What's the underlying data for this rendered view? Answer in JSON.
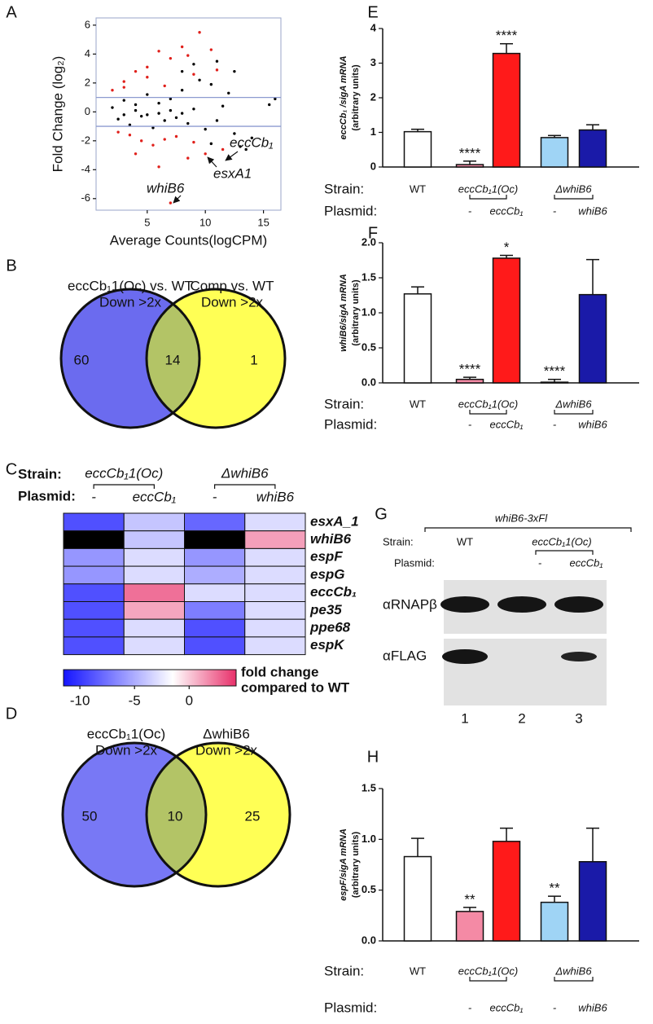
{
  "chart_data": [
    {
      "type": "scatter",
      "panel": "A",
      "x_label": "Average Counts(logCPM)",
      "y_label": "Fold Change (log₂)",
      "xlim": [
        0.6,
        16.5
      ],
      "ylim": [
        -6.8,
        6.5
      ],
      "xticks": [
        5,
        10,
        15
      ],
      "yticks": [
        -6,
        -4,
        -2,
        0,
        2,
        4,
        6
      ],
      "hlines": [
        1,
        -1
      ],
      "hline_color": "#8d9bd0",
      "series": [
        {
          "color": "#000000",
          "x": [
            2,
            2.5,
            3,
            3.5,
            4,
            4.5,
            5,
            5.5,
            6,
            6.5,
            7,
            7.5,
            8,
            8.5,
            9,
            9.5,
            10,
            10.5,
            11,
            11.5,
            12,
            12.5,
            13,
            13.5,
            14,
            15.5,
            16,
            11,
            9,
            12.5,
            8,
            10.5,
            3,
            6,
            7,
            8,
            4,
            5
          ],
          "values": [
            0.3,
            -0.5,
            0.8,
            -0.9,
            0.5,
            -0.3,
            1.2,
            -1.1,
            0.6,
            -0.6,
            0.9,
            -0.4,
            1.5,
            -0.8,
            0.2,
            2.2,
            -1.2,
            1.9,
            -0.6,
            0.4,
            1.3,
            -1.5,
            -2.4,
            -2.6,
            -1.8,
            0.5,
            0.9,
            3.5,
            3.3,
            2.8,
            2.8,
            -2.2,
            -0.2,
            -0.1,
            0.1,
            -0.1,
            0.1,
            -0.2
          ]
        },
        {
          "color": "#e0201b",
          "x": [
            2,
            3,
            3.5,
            4,
            4.5,
            5,
            5.5,
            6,
            6.5,
            7,
            7.5,
            8,
            8.5,
            9,
            9.5,
            10,
            10.5,
            11.5,
            7,
            6,
            4,
            5,
            3,
            8.5,
            9,
            6.5,
            2.5,
            11
          ],
          "values": [
            1.5,
            2.1,
            -1.6,
            2.8,
            -2,
            3.1,
            -2.3,
            4.2,
            1.8,
            3.7,
            -1.7,
            4.5,
            -3.2,
            2.6,
            5.5,
            -2.9,
            4.3,
            -2.6,
            -6.3,
            -3.8,
            -2.9,
            2.4,
            1.7,
            3.9,
            -2.1,
            -1.9,
            -1.4,
            2.9
          ]
        }
      ],
      "annotations": [
        "eccCb₁",
        "esxA1",
        "whiB6"
      ]
    },
    {
      "type": "venn",
      "panel": "B",
      "sets": [
        {
          "label": [
            "eccCb₁1(Oc) vs. WT",
            "Down >2x"
          ],
          "color": "#6b6bef",
          "count": 60
        },
        {
          "label": [
            "Comp vs. WT",
            "Down >2x"
          ],
          "color": "#ffff55",
          "count": 1
        }
      ],
      "overlap": {
        "color": "#b3c466",
        "count": 14
      }
    },
    {
      "type": "heatmap",
      "panel": "C",
      "header_labels": [
        "Strain:",
        "Plasmid:"
      ],
      "strains": [
        "eccCb₁1(Oc)",
        "ΔwhiB6"
      ],
      "plasmids": [
        "-",
        "eccCb₁",
        "-",
        "whiB6"
      ],
      "rows": [
        "esxA_1",
        "whiB6",
        "espF",
        "espG",
        "eccCb₁",
        "pe35",
        "ppe68",
        "espK"
      ],
      "values": [
        [
          -9,
          -4,
          -8,
          -3
        ],
        [
          null,
          -4,
          null,
          1.2
        ],
        [
          -6,
          -3,
          -6,
          -3
        ],
        [
          -6,
          -3,
          -5,
          -3
        ],
        [
          -9,
          2.5,
          -3,
          -3
        ],
        [
          -9,
          1,
          -7,
          -3
        ],
        [
          -9,
          -3,
          -9,
          -3
        ],
        [
          -9,
          -3,
          -9,
          -3
        ]
      ],
      "missing_color": "#000000",
      "colorscale": [
        [
          -11.5,
          "#1515ff"
        ],
        [
          -1.5,
          "#ffffff"
        ],
        [
          4.3,
          "#e8306a"
        ]
      ],
      "clim": [
        -11.5,
        4.3
      ],
      "cticks": [
        -10,
        -5,
        0
      ],
      "colorbar_label": [
        "fold change",
        "compared to WT"
      ]
    },
    {
      "type": "venn",
      "panel": "D",
      "sets": [
        {
          "label": [
            "eccCb₁1(Oc)",
            "Down >2x"
          ],
          "color": "#7878f5",
          "count": 50
        },
        {
          "label": [
            "ΔwhiB6",
            "Down >2x"
          ],
          "color": "#ffff55",
          "count": 25
        }
      ],
      "overlap": {
        "color": "#b3c466",
        "count": 10
      }
    },
    {
      "type": "bar",
      "panel": "E",
      "y_label": [
        "eccCb₁ /sigA mRNA",
        "(arbitrary units)"
      ],
      "ylim": [
        0,
        4
      ],
      "yticks": [
        0,
        1,
        2,
        3,
        4
      ],
      "values": [
        1.02,
        0.07,
        3.28,
        0.85,
        1.07
      ],
      "errors": [
        0.07,
        0.1,
        0.28,
        0.06,
        0.15
      ],
      "colors": [
        "#ffffff",
        "#f48aa5",
        "#ff1a1a",
        "#9fd4f5",
        "#1a1aa8"
      ],
      "significance": [
        null,
        "****",
        "****",
        null,
        null
      ],
      "row_labels": [
        "Strain:",
        "Plasmid:"
      ],
      "strains": [
        "WT",
        "eccCb₁1(Oc)",
        "ΔwhiB6"
      ],
      "plasmids": [
        null,
        "-",
        "eccCb₁",
        "-",
        "whiB6"
      ]
    },
    {
      "type": "bar",
      "panel": "F",
      "y_label": [
        "whiB6/sigA mRNA",
        "(arbitrary units)"
      ],
      "ylim": [
        0,
        2
      ],
      "yticks": [
        {
          "value": 0,
          "label": "0.0"
        },
        0.5,
        {
          "value": 1,
          "label": "1.0"
        },
        1.5,
        {
          "value": 2,
          "label": "2.0"
        }
      ],
      "values": [
        1.27,
        0.05,
        1.78,
        0.01,
        1.26
      ],
      "errors": [
        0.1,
        0.03,
        0.04,
        0.04,
        0.5
      ],
      "colors": [
        "#ffffff",
        "#f48aa5",
        "#ff1a1a",
        "#9fd4f5",
        "#1a1aa8"
      ],
      "significance": [
        null,
        "****",
        "*",
        "****",
        null
      ],
      "row_labels": [
        "Strain:",
        "Plasmid:"
      ],
      "strains": [
        "WT",
        "eccCb₁1(Oc)",
        "ΔwhiB6"
      ],
      "plasmids": [
        null,
        "-",
        "eccCb₁",
        "-",
        "whiB6"
      ]
    },
    {
      "type": "blot",
      "panel": "G",
      "construct": "whiB6-3xFl",
      "row_labels": [
        "Strain:",
        "Plasmid:"
      ],
      "strains": [
        "WT",
        "eccCb₁1(Oc)"
      ],
      "plasmids": [
        null,
        "-",
        "eccCb₁"
      ],
      "antibodies": [
        "αRNAPβ",
        "αFLAG"
      ],
      "lanes": [
        1,
        2,
        3
      ]
    },
    {
      "type": "bar",
      "panel": "H",
      "y_label": [
        "espF/sigA mRNA",
        "(arbitrary units)"
      ],
      "ylim": [
        0,
        1.5
      ],
      "yticks": [
        {
          "value": 0,
          "label": "0.0"
        },
        0.5,
        {
          "value": 1,
          "label": "1.0"
        },
        1.5
      ],
      "values": [
        0.83,
        0.29,
        0.98,
        0.38,
        0.78
      ],
      "errors": [
        0.18,
        0.04,
        0.13,
        0.06,
        0.33
      ],
      "colors": [
        "#ffffff",
        "#f48aa5",
        "#ff1a1a",
        "#9fd4f5",
        "#1a1aa8"
      ],
      "significance": [
        null,
        "**",
        null,
        "**",
        null
      ],
      "row_labels": [
        "Strain:",
        "Plasmid:"
      ],
      "strains": [
        "WT",
        "eccCb₁1(Oc)",
        "ΔwhiB6"
      ],
      "plasmids": [
        null,
        "-",
        "eccCb₁",
        "-",
        "whiB6"
      ]
    }
  ]
}
